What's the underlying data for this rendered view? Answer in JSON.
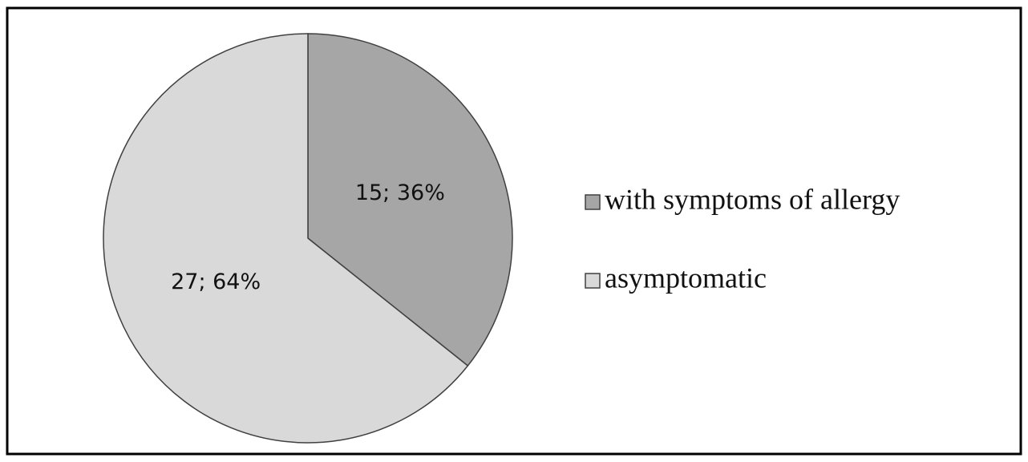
{
  "chart_data": {
    "type": "pie",
    "categories": [
      "with symptoms of allergy",
      "asymptomatic"
    ],
    "values": [
      15,
      27
    ],
    "value_labels": [
      "15; 36%",
      "27; 64%"
    ],
    "colors": [
      "#a6a6a6",
      "#d9d9d9"
    ],
    "legend": "right"
  }
}
